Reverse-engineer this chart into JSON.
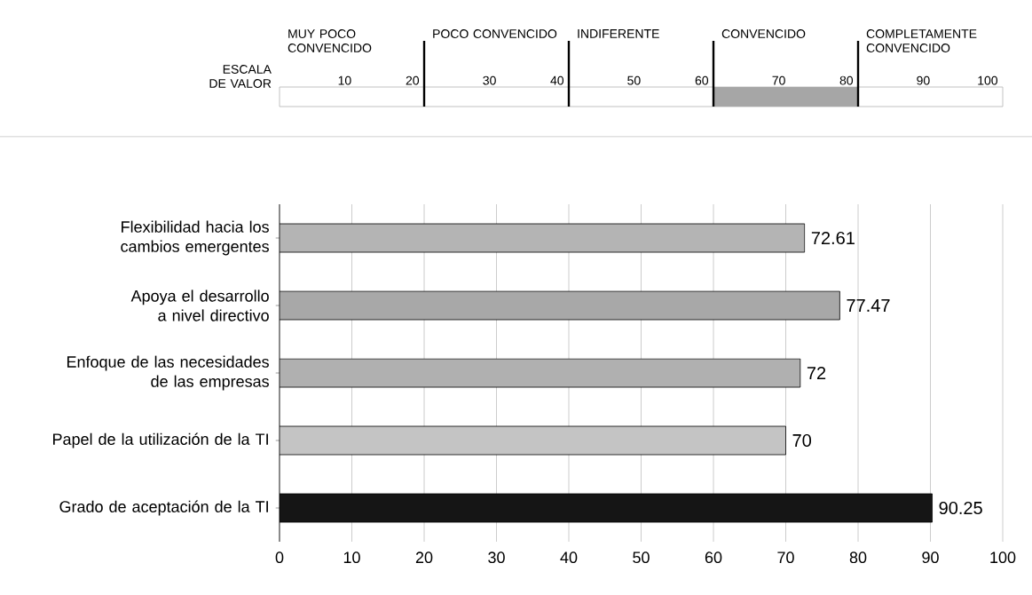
{
  "chart_data": {
    "type": "bar",
    "orientation": "horizontal",
    "categories": [
      "Flexibilidad hacia los cambios emergentes",
      "Apoya el desarrollo a nivel directivo",
      "Enfoque de las necesidades de las empresas",
      "Papel de la utilización de la TI",
      "Grado de aceptación de la TI"
    ],
    "values": [
      72.61,
      77.47,
      72,
      70,
      90.25
    ],
    "colors": [
      "#b4b4b4",
      "#a8a8a8",
      "#b0b0b0",
      "#c4c4c4",
      "#151515"
    ],
    "xlim": [
      0,
      100
    ],
    "xticks": [
      0,
      10,
      20,
      30,
      40,
      50,
      60,
      70,
      80,
      90,
      100
    ],
    "grid": "x",
    "data_labels": true,
    "annotations": [
      "ESCALA DE VALOR",
      "MUY POCO CONVENCIDO",
      "POCO CONVENCIDO",
      "INDIFERENTE",
      "CONVENCIDO",
      "COMPLETAMENTE CONVENCIDO",
      "10",
      "20",
      "30",
      "40",
      "50",
      "60",
      "70",
      "80",
      "90",
      "100"
    ]
  }
}
